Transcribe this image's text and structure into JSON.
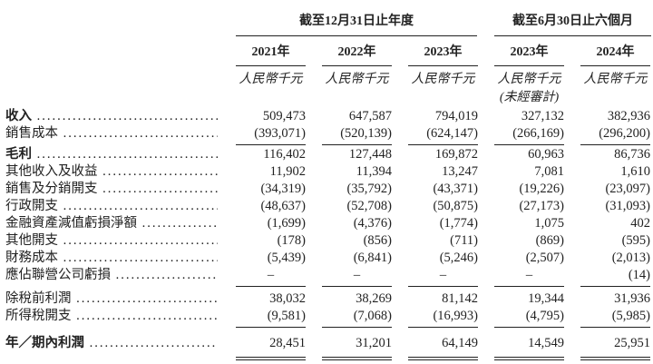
{
  "header": {
    "groups": [
      "截至12月31日止年度",
      "截至6月30日止六個月"
    ],
    "years": [
      "2021年",
      "2022年",
      "2023年",
      "2023年",
      "2024年"
    ],
    "unit": "人民幣千元",
    "unaudited": "(未經審計)"
  },
  "rows": [
    {
      "label": "收入",
      "bold": true,
      "values": [
        "509,473",
        "647,587",
        "794,019",
        "327,132",
        "382,936"
      ]
    },
    {
      "label": "銷售成本",
      "values": [
        "(393,071)",
        "(520,139)",
        "(624,147)",
        "(266,169)",
        "(296,200)"
      ]
    },
    {
      "label": "毛利",
      "bold": true,
      "values": [
        "116,402",
        "127,448",
        "169,872",
        "60,963",
        "86,736"
      ]
    },
    {
      "label": "其他收入及收益",
      "values": [
        "11,902",
        "11,394",
        "13,247",
        "7,081",
        "1,610"
      ]
    },
    {
      "label": "銷售及分銷開支",
      "values": [
        "(34,319)",
        "(35,792)",
        "(43,371)",
        "(19,226)",
        "(23,097)"
      ]
    },
    {
      "label": "行政開支",
      "values": [
        "(48,637)",
        "(52,708)",
        "(50,875)",
        "(27,173)",
        "(31,093)"
      ]
    },
    {
      "label": "金融資產減值虧損淨額",
      "values": [
        "(1,699)",
        "(4,376)",
        "(1,774)",
        "1,075",
        "402"
      ]
    },
    {
      "label": "其他開支",
      "values": [
        "(178)",
        "(856)",
        "(711)",
        "(869)",
        "(595)"
      ]
    },
    {
      "label": "財務成本",
      "values": [
        "(5,439)",
        "(6,841)",
        "(5,246)",
        "(2,507)",
        "(2,013)"
      ]
    },
    {
      "label": "應佔聯營公司虧損",
      "values": [
        "–",
        "–",
        "–",
        "–",
        "(14)"
      ]
    },
    {
      "label": "除稅前利潤",
      "values": [
        "38,032",
        "38,269",
        "81,142",
        "19,344",
        "31,936"
      ]
    },
    {
      "label": "所得稅開支",
      "values": [
        "(9,581)",
        "(7,068)",
        "(16,993)",
        "(4,795)",
        "(5,985)"
      ]
    },
    {
      "label": "年／期內利潤",
      "bold": true,
      "values": [
        "28,451",
        "31,201",
        "64,149",
        "14,549",
        "25,951"
      ]
    }
  ]
}
